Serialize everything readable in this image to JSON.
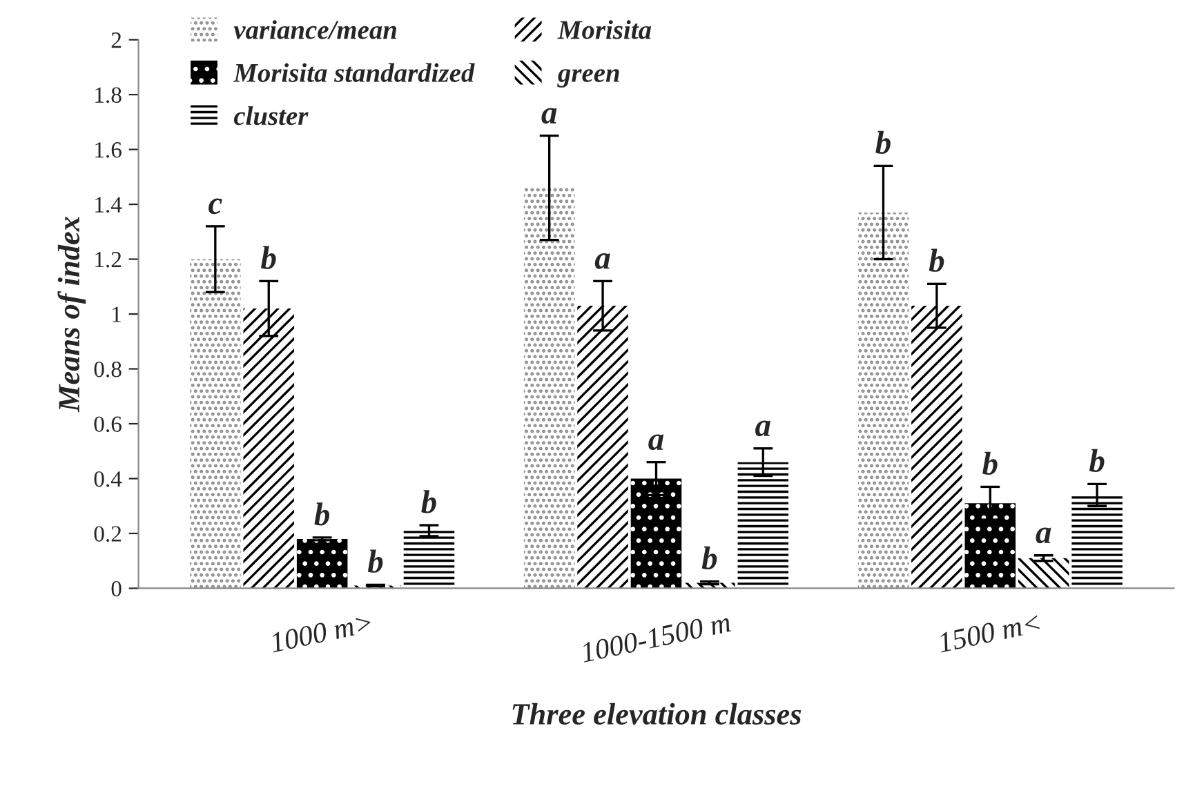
{
  "chart_data": {
    "type": "bar",
    "xlabel": "Three elevation classes",
    "ylabel": "Means of index",
    "categories": [
      "1000 m>",
      "1000-1500 m",
      "1500 m<"
    ],
    "series": [
      {
        "name": "variance/mean",
        "color": "#8c8c8c",
        "values": [
          1.2,
          1.46,
          1.37
        ],
        "errors": [
          0.12,
          0.19,
          0.17
        ],
        "value_labels": [
          "c",
          "a",
          "b"
        ]
      },
      {
        "name": "Morisita",
        "color": "#000000",
        "values": [
          1.02,
          1.03,
          1.03
        ],
        "errors": [
          0.1,
          0.09,
          0.08
        ],
        "value_labels": [
          "b",
          "a",
          "b"
        ]
      },
      {
        "name": "Morisita standardized",
        "color": "#000000",
        "values": [
          0.18,
          0.4,
          0.31
        ],
        "errors": [
          0.005,
          0.06,
          0.06
        ],
        "value_labels": [
          "b",
          "a",
          "b"
        ]
      },
      {
        "name": "green",
        "color": "#000000",
        "values": [
          0.01,
          0.02,
          0.11
        ],
        "errors": [
          0.003,
          0.005,
          0.01
        ],
        "value_labels": [
          "b",
          "b",
          "a"
        ]
      },
      {
        "name": "cluster",
        "color": "#000000",
        "values": [
          0.21,
          0.46,
          0.34
        ],
        "errors": [
          0.02,
          0.05,
          0.04
        ],
        "value_labels": [
          "b",
          "a",
          "b"
        ]
      }
    ],
    "ylim": [
      0,
      2
    ],
    "yticks": [
      0,
      0.2,
      0.4,
      0.6,
      0.8,
      1,
      1.2,
      1.4,
      1.6,
      1.8,
      2
    ],
    "grid": false,
    "legend": "top left"
  }
}
